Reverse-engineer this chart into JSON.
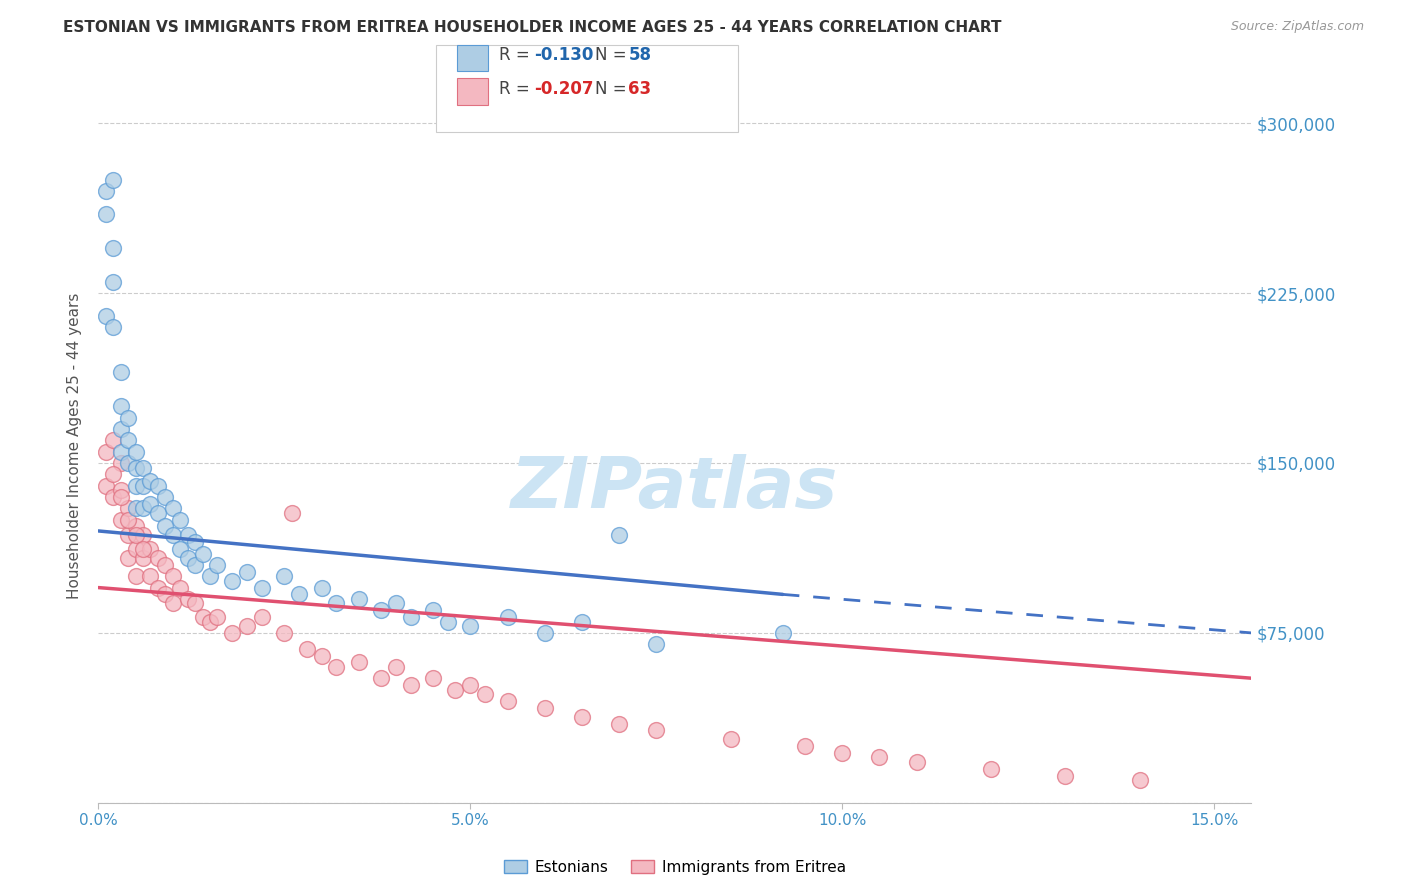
{
  "title": "ESTONIAN VS IMMIGRANTS FROM ERITREA HOUSEHOLDER INCOME AGES 25 - 44 YEARS CORRELATION CHART",
  "source": "Source: ZipAtlas.com",
  "ylabel": "Householder Income Ages 25 - 44 years",
  "xlim": [
    0.0,
    0.155
  ],
  "ylim": [
    0,
    315000
  ],
  "yticks": [
    0,
    75000,
    150000,
    225000,
    300000
  ],
  "ytick_labels": [
    "",
    "$75,000",
    "$150,000",
    "$225,000",
    "$300,000"
  ],
  "xticks": [
    0.0,
    0.05,
    0.1,
    0.15
  ],
  "xtick_labels": [
    "0.0%",
    "5.0%",
    "10.0%",
    "15.0%"
  ],
  "r1": "-0.130",
  "n1": "58",
  "r2": "-0.207",
  "n2": "63",
  "label1": "Estonians",
  "label2": "Immigrants from Eritrea",
  "color_blue_fill": "#aecde4",
  "color_blue_edge": "#5b9bd5",
  "color_pink_fill": "#f4b8c1",
  "color_pink_edge": "#e07080",
  "color_blue_line": "#4472c4",
  "color_pink_line": "#e05070",
  "color_r_blue": "#2166ac",
  "color_r_pink": "#d62728",
  "color_axis_text": "#4292c6",
  "watermark": "ZIPatlas",
  "watermark_color": "#cce4f4",
  "background": "#ffffff",
  "grid_color": "#cccccc",
  "estonian_x": [
    0.001,
    0.001,
    0.002,
    0.002,
    0.002,
    0.003,
    0.003,
    0.003,
    0.003,
    0.004,
    0.004,
    0.004,
    0.005,
    0.005,
    0.005,
    0.005,
    0.006,
    0.006,
    0.006,
    0.007,
    0.007,
    0.008,
    0.008,
    0.009,
    0.009,
    0.01,
    0.01,
    0.011,
    0.011,
    0.012,
    0.012,
    0.013,
    0.013,
    0.014,
    0.015,
    0.016,
    0.018,
    0.02,
    0.022,
    0.025,
    0.027,
    0.03,
    0.032,
    0.035,
    0.038,
    0.04,
    0.042,
    0.045,
    0.047,
    0.05,
    0.055,
    0.06,
    0.065,
    0.07,
    0.075,
    0.092,
    0.001,
    0.002
  ],
  "estonian_y": [
    270000,
    260000,
    275000,
    245000,
    230000,
    190000,
    175000,
    165000,
    155000,
    170000,
    160000,
    150000,
    155000,
    148000,
    140000,
    130000,
    148000,
    140000,
    130000,
    142000,
    132000,
    140000,
    128000,
    135000,
    122000,
    130000,
    118000,
    125000,
    112000,
    118000,
    108000,
    115000,
    105000,
    110000,
    100000,
    105000,
    98000,
    102000,
    95000,
    100000,
    92000,
    95000,
    88000,
    90000,
    85000,
    88000,
    82000,
    85000,
    80000,
    78000,
    82000,
    75000,
    80000,
    118000,
    70000,
    75000,
    215000,
    210000
  ],
  "eritrean_x": [
    0.001,
    0.001,
    0.002,
    0.002,
    0.003,
    0.003,
    0.003,
    0.004,
    0.004,
    0.004,
    0.005,
    0.005,
    0.005,
    0.006,
    0.006,
    0.007,
    0.007,
    0.008,
    0.008,
    0.009,
    0.009,
    0.01,
    0.01,
    0.011,
    0.012,
    0.013,
    0.014,
    0.015,
    0.016,
    0.018,
    0.02,
    0.022,
    0.025,
    0.026,
    0.028,
    0.03,
    0.032,
    0.035,
    0.038,
    0.04,
    0.042,
    0.045,
    0.048,
    0.05,
    0.052,
    0.055,
    0.06,
    0.065,
    0.07,
    0.075,
    0.085,
    0.095,
    0.1,
    0.105,
    0.11,
    0.12,
    0.13,
    0.14,
    0.002,
    0.003,
    0.004,
    0.005,
    0.006
  ],
  "eritrean_y": [
    155000,
    140000,
    160000,
    135000,
    150000,
    138000,
    125000,
    130000,
    118000,
    108000,
    122000,
    112000,
    100000,
    118000,
    108000,
    112000,
    100000,
    108000,
    95000,
    105000,
    92000,
    100000,
    88000,
    95000,
    90000,
    88000,
    82000,
    80000,
    82000,
    75000,
    78000,
    82000,
    75000,
    128000,
    68000,
    65000,
    60000,
    62000,
    55000,
    60000,
    52000,
    55000,
    50000,
    52000,
    48000,
    45000,
    42000,
    38000,
    35000,
    32000,
    28000,
    25000,
    22000,
    20000,
    18000,
    15000,
    12000,
    10000,
    145000,
    135000,
    125000,
    118000,
    112000
  ]
}
